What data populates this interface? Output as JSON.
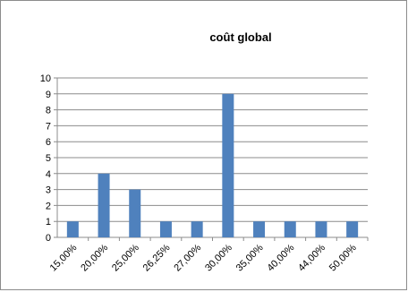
{
  "chart_data": {
    "type": "bar",
    "title": "coût global",
    "xlabel": "",
    "ylabel": "",
    "categories": [
      "15,00%",
      "20,00%",
      "25,00%",
      "26,25%",
      "27,00%",
      "30,00%",
      "35,00%",
      "40,00%",
      "44,00%",
      "50,00%"
    ],
    "values": [
      1,
      4,
      3,
      1,
      1,
      9,
      1,
      1,
      1,
      1
    ],
    "ylim": [
      0,
      10
    ],
    "yticks": [
      "0",
      "1",
      "2",
      "3",
      "4",
      "5",
      "6",
      "7",
      "8",
      "9",
      "10"
    ],
    "grid": true,
    "legend": "none",
    "bar_color": "#4f81bd"
  }
}
